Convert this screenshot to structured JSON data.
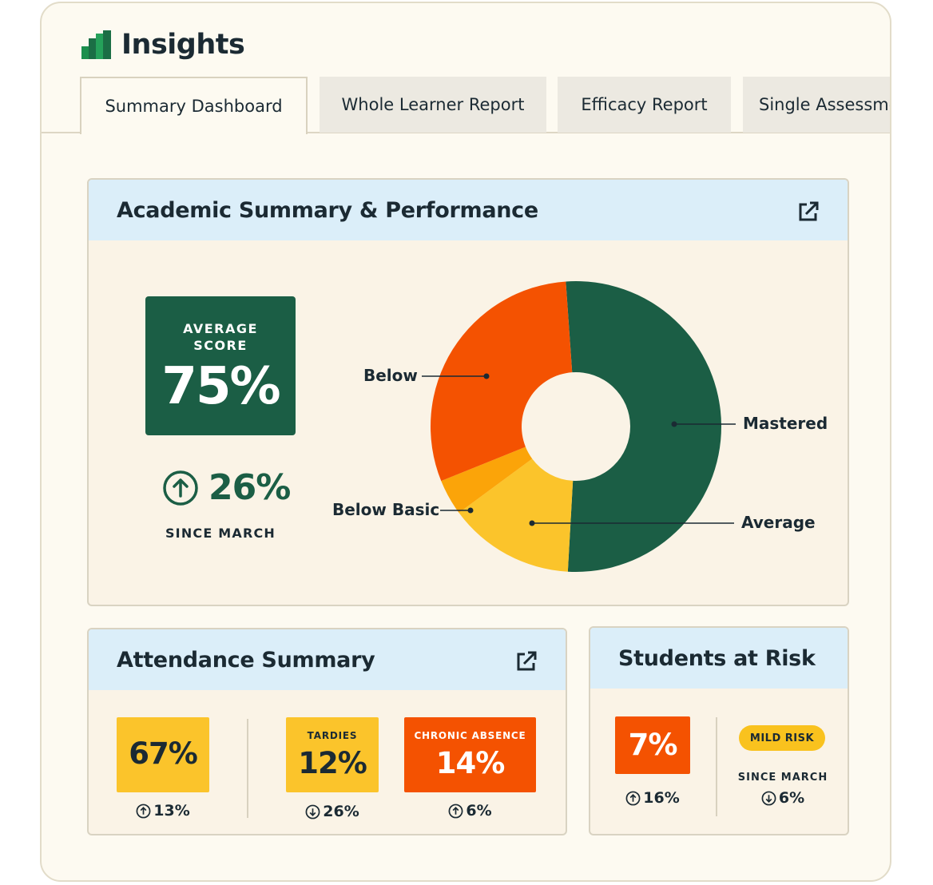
{
  "app": {
    "title": "Insights",
    "logo_icon": "bar-chart-logo-icon",
    "brand_color": "#1b8f4d"
  },
  "tabs": [
    {
      "label": "Summary Dashboard",
      "active": true
    },
    {
      "label": "Whole Learner Report",
      "active": false
    },
    {
      "label": "Efficacy Report",
      "active": false
    },
    {
      "label": "Single Assessment",
      "active": false
    }
  ],
  "academic": {
    "title": "Academic Summary & Performance",
    "external_icon": "external-link-icon",
    "average_label_line1": "AVERAGE",
    "average_label_line2": "SCORE",
    "average_value": "75%",
    "delta_value": "26%",
    "delta_direction": "up",
    "since_label": "SINCE MARCH"
  },
  "chart_data": {
    "type": "pie",
    "title": "Academic Summary & Performance",
    "donut": true,
    "slices": [
      {
        "label": "Mastered",
        "value": 52,
        "color": "#1b5e45"
      },
      {
        "label": "Average",
        "value": 14,
        "color": "#fbc42b"
      },
      {
        "label": "Below Basic",
        "value": 4,
        "color": "#fba409"
      },
      {
        "label": "Below",
        "value": 30,
        "color": "#f45201"
      }
    ]
  },
  "attendance": {
    "title": "Attendance Summary",
    "external_icon": "external-link-icon",
    "rate": {
      "value": "67%",
      "delta": "13%",
      "direction": "up",
      "color": "#fbc42b"
    },
    "tardies": {
      "label": "TARDIES",
      "value": "12%",
      "delta": "26%",
      "direction": "down",
      "color": "#fbc42b"
    },
    "chronic": {
      "label": "CHRONIC ABSENCE",
      "value": "14%",
      "delta": "6%",
      "direction": "up",
      "color": "#f45201"
    }
  },
  "risk": {
    "title": "Students at Risk",
    "value": "7%",
    "delta": "16%",
    "direction": "up",
    "badge": "MILD RISK",
    "since_label": "SINCE MARCH",
    "since_delta": "6%",
    "since_direction": "down"
  }
}
